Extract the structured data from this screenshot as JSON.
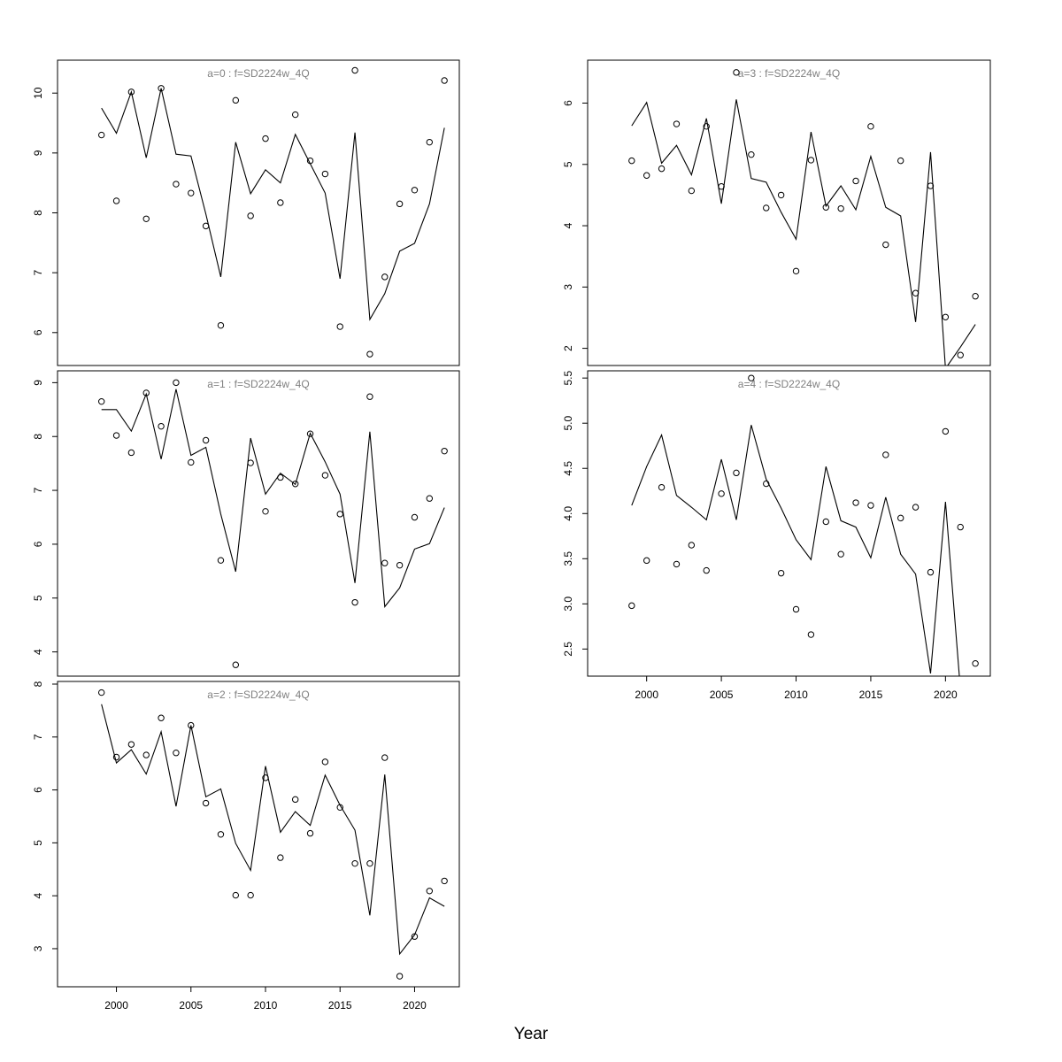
{
  "figure": {
    "xlabel": "Year"
  },
  "chart_data": [
    {
      "type": "line",
      "title": "a=0  :  f=SD2224w_4Q",
      "x": [
        1999,
        2000,
        2001,
        2002,
        2003,
        2004,
        2005,
        2006,
        2007,
        2008,
        2009,
        2010,
        2011,
        2012,
        2013,
        2014,
        2015,
        2016,
        2017,
        2018,
        2019,
        2020,
        2021,
        2022
      ],
      "series": [
        {
          "kind": "line",
          "values": [
            9.75,
            9.33,
            10.02,
            8.92,
            10.08,
            8.98,
            8.95,
            7.98,
            6.93,
            9.18,
            8.32,
            8.72,
            8.5,
            9.31,
            8.82,
            8.33,
            6.9,
            9.34,
            6.22,
            6.65,
            7.36,
            7.49,
            8.15,
            9.42
          ]
        },
        {
          "kind": "points",
          "values": [
            9.3,
            8.2,
            10.02,
            7.9,
            10.08,
            8.48,
            8.33,
            7.78,
            6.12,
            9.88,
            7.95,
            9.24,
            8.17,
            9.64,
            8.87,
            8.65,
            6.1,
            10.38,
            5.64,
            6.93,
            8.15,
            8.38,
            9.18,
            10.21
          ]
        }
      ],
      "xlim": [
        1996.05,
        2023.0
      ],
      "ylim": [
        5.45,
        10.55
      ],
      "yticks": [
        6,
        7,
        8,
        9,
        10
      ],
      "xticks_shown": false
    },
    {
      "type": "line",
      "title": "a=1  :  f=SD2224w_4Q",
      "x": [
        1999,
        2000,
        2001,
        2002,
        2003,
        2004,
        2005,
        2006,
        2007,
        2008,
        2009,
        2010,
        2011,
        2012,
        2013,
        2014,
        2015,
        2016,
        2017,
        2018,
        2019,
        2020,
        2021,
        2022
      ],
      "series": [
        {
          "kind": "line",
          "values": [
            8.5,
            8.5,
            8.1,
            8.79,
            7.58,
            8.88,
            7.65,
            7.8,
            6.56,
            5.49,
            7.97,
            6.93,
            7.32,
            7.11,
            8.06,
            7.53,
            6.93,
            5.28,
            8.09,
            4.84,
            5.19,
            5.91,
            6.01,
            6.68
          ]
        },
        {
          "kind": "points",
          "values": [
            8.65,
            8.02,
            7.7,
            8.81,
            8.19,
            9.0,
            7.52,
            7.93,
            5.7,
            3.76,
            7.51,
            6.61,
            7.24,
            7.12,
            8.05,
            7.28,
            6.56,
            4.92,
            8.74,
            5.65,
            5.61,
            6.5,
            6.85,
            7.73
          ]
        }
      ],
      "xlim": [
        1996.05,
        2023.0
      ],
      "ylim": [
        3.55,
        9.22
      ],
      "yticks": [
        4,
        5,
        6,
        7,
        8,
        9
      ],
      "xticks_shown": false
    },
    {
      "type": "line",
      "title": "a=2  :  f=SD2224w_4Q",
      "x": [
        1999,
        2000,
        2001,
        2002,
        2003,
        2004,
        2005,
        2006,
        2007,
        2008,
        2009,
        2010,
        2011,
        2012,
        2013,
        2014,
        2015,
        2016,
        2017,
        2018,
        2019,
        2020,
        2021,
        2022
      ],
      "series": [
        {
          "kind": "line",
          "values": [
            7.62,
            6.51,
            6.76,
            6.3,
            7.1,
            5.69,
            7.22,
            5.87,
            6.02,
            4.99,
            4.48,
            6.45,
            5.2,
            5.59,
            5.33,
            6.28,
            5.71,
            5.24,
            3.63,
            6.29,
            2.9,
            3.26,
            3.96,
            3.8
          ]
        },
        {
          "kind": "points",
          "values": [
            7.84,
            6.62,
            6.86,
            6.66,
            7.36,
            6.7,
            7.22,
            5.75,
            5.16,
            4.01,
            4.01,
            6.23,
            4.72,
            5.82,
            5.18,
            6.53,
            5.67,
            4.61,
            4.61,
            6.61,
            2.48,
            3.23,
            4.09,
            4.28
          ]
        }
      ],
      "xlim": [
        1996.05,
        2023.0
      ],
      "ylim": [
        2.28,
        8.05
      ],
      "yticks": [
        3,
        4,
        5,
        6,
        7,
        8
      ],
      "xticks_shown": true,
      "xticks": [
        2000,
        2005,
        2010,
        2015,
        2020
      ]
    },
    {
      "type": "line",
      "title": "a=3  :  f=SD2224w_4Q",
      "x": [
        1999,
        2000,
        2001,
        2002,
        2003,
        2004,
        2005,
        2006,
        2007,
        2008,
        2009,
        2010,
        2011,
        2012,
        2013,
        2014,
        2015,
        2016,
        2017,
        2018,
        2019,
        2020,
        2021,
        2022
      ],
      "series": [
        {
          "kind": "line",
          "values": [
            5.63,
            6.01,
            5.02,
            5.31,
            4.83,
            5.75,
            4.36,
            6.06,
            4.77,
            4.71,
            4.22,
            3.78,
            5.53,
            4.32,
            4.65,
            4.26,
            5.13,
            4.3,
            4.16,
            2.43,
            5.2,
            1.67,
            2.02,
            2.39
          ]
        },
        {
          "kind": "points",
          "values": [
            5.06,
            4.82,
            4.93,
            5.66,
            4.57,
            5.62,
            4.64,
            6.5,
            5.16,
            4.29,
            4.5,
            3.26,
            5.07,
            4.3,
            4.28,
            4.73,
            5.62,
            3.69,
            5.06,
            2.9,
            4.65,
            2.51,
            1.89,
            2.85
          ]
        }
      ],
      "xlim": [
        1996.05,
        2023.0
      ],
      "ylim": [
        1.72,
        6.7
      ],
      "yticks": [
        2,
        3,
        4,
        5,
        6
      ],
      "xticks_shown": false
    },
    {
      "type": "line",
      "title": "a=4  :  f=SD2224w_4Q",
      "x": [
        1999,
        2000,
        2001,
        2002,
        2003,
        2004,
        2005,
        2006,
        2007,
        2008,
        2009,
        2010,
        2011,
        2012,
        2013,
        2014,
        2015,
        2016,
        2017,
        2018,
        2019,
        2020,
        2021,
        2022
      ],
      "series": [
        {
          "kind": "line",
          "values": [
            4.09,
            4.52,
            4.87,
            4.2,
            4.07,
            3.93,
            4.6,
            3.93,
            4.98,
            4.38,
            4.06,
            3.71,
            3.49,
            4.52,
            3.92,
            3.85,
            3.51,
            4.18,
            3.55,
            3.33,
            2.23,
            4.13,
            2.05,
            null
          ]
        },
        {
          "kind": "points",
          "values": [
            2.98,
            3.48,
            4.29,
            3.44,
            3.65,
            3.37,
            4.22,
            4.45,
            5.5,
            4.33,
            3.34,
            2.94,
            2.66,
            3.91,
            3.55,
            4.12,
            4.09,
            4.65,
            3.95,
            4.07,
            3.35,
            4.91,
            3.85,
            2.34
          ]
        }
      ],
      "xlim": [
        1996.05,
        2023.0
      ],
      "ylim": [
        2.2,
        5.58
      ],
      "yticks": [
        2.5,
        3.0,
        3.5,
        4.0,
        4.5,
        5.0,
        5.5
      ],
      "ytick_labels": [
        "2.5",
        "3.0",
        "3.5",
        "4.0",
        "4.5",
        "5.0",
        "5.5"
      ],
      "xticks_shown": true,
      "xticks": [
        2000,
        2005,
        2010,
        2015,
        2020
      ]
    }
  ]
}
